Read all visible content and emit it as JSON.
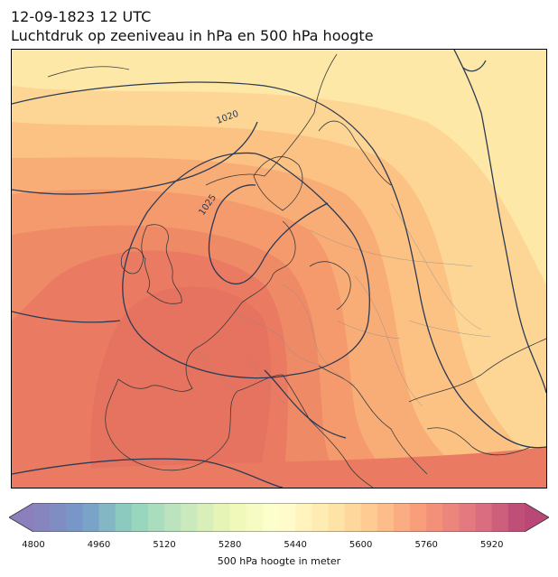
{
  "header": {
    "datetime": "12-09-1823 12 UTC",
    "subtitle": "Luchtdruk op zeeniveau in hPa en 500 hPa hoogte"
  },
  "map": {
    "type": "meteorological-analysis",
    "region": "Europe",
    "filled_field": "500 hPa geopotential height",
    "contour_field": "mean sea level pressure",
    "isobar_labels": [
      "1020",
      "1025"
    ],
    "colors": {
      "low_height": "#6a78b8",
      "mid_height": "#fffccc",
      "high_height": "#c73e5a",
      "isobar": "#2b3a55",
      "coastline": "#3a3a3a"
    }
  },
  "colorbar": {
    "label": "500 hPa hoogte in meter",
    "ticks": [
      "4800",
      "4960",
      "5120",
      "5280",
      "5440",
      "5600",
      "5760",
      "5920"
    ],
    "min": 4800,
    "max": 6000,
    "step": 40,
    "colormap": "Spectral_r",
    "extend": "both"
  }
}
